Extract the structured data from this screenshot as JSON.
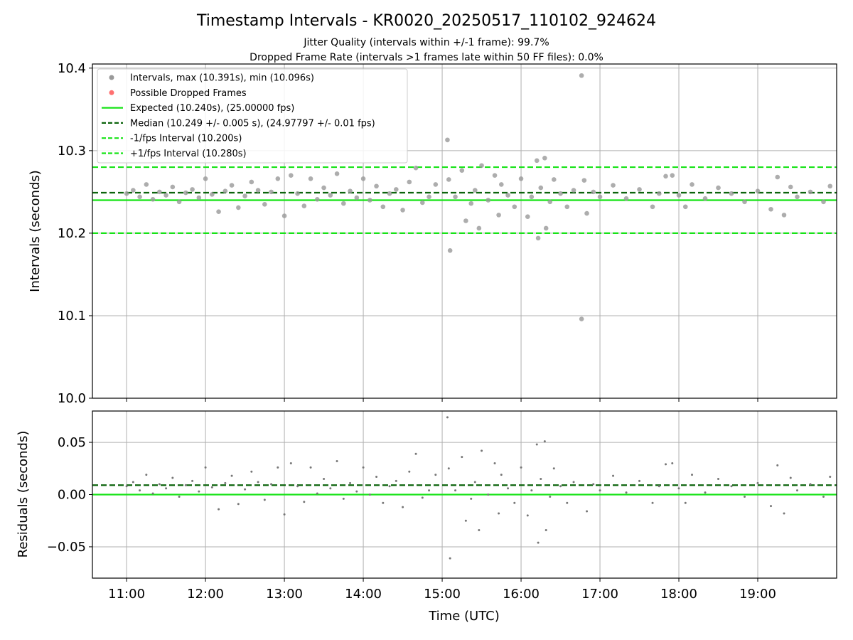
{
  "title": "Timestamp Intervals - KR0020_20250517_110102_924624",
  "subtitle1": "Jitter Quality (intervals within +/-1 frame): 99.7%",
  "subtitle2": "Dropped Frame Rate (intervals >1 frames late within 50 FF files): 0.0%",
  "chart_data": [
    {
      "type": "scatter",
      "ylabel": "Intervals (seconds)",
      "xlabel": "",
      "xlim": [
        "10:34",
        "20:00"
      ],
      "ylim": [
        10.0,
        10.405
      ],
      "x_ticks": [
        "11:00",
        "12:00",
        "13:00",
        "14:00",
        "15:00",
        "16:00",
        "17:00",
        "18:00",
        "19:00"
      ],
      "y_ticks": [
        "10.0",
        "10.1",
        "10.2",
        "10.3",
        "10.4"
      ],
      "y_tick_values": [
        10.0,
        10.1,
        10.2,
        10.3,
        10.4
      ],
      "grid": true,
      "legend_position": "top-left",
      "legend": [
        {
          "label": "Intervals, max (10.391s), min (10.096s)",
          "style": "marker",
          "color": "#999999"
        },
        {
          "label": "Possible Dropped Frames",
          "style": "marker",
          "color": "#ff7070"
        },
        {
          "label": "Expected (10.240s), (25.00000 fps)",
          "style": "solid",
          "color": "#16e316"
        },
        {
          "label": "Median (10.249 +/- 0.005 s), (24.97797 +/- 0.01 fps)",
          "style": "dashed",
          "color": "#0d640d"
        },
        {
          "label": "-1/fps Interval (10.200s)",
          "style": "dashed",
          "color": "#16e316"
        },
        {
          "label": "+1/fps Interval (10.280s)",
          "style": "dashed",
          "color": "#16e316"
        }
      ],
      "lines": [
        {
          "name": "Expected",
          "y": 10.24,
          "style": "solid",
          "color": "#16e316"
        },
        {
          "name": "Median",
          "y": 10.249,
          "style": "dashed",
          "color": "#0d640d"
        },
        {
          "name": "-1/fps Interval",
          "y": 10.2,
          "style": "dashed",
          "color": "#16e316"
        },
        {
          "name": "+1/fps Interval",
          "y": 10.28,
          "style": "dashed",
          "color": "#16e316"
        }
      ],
      "series": [
        {
          "values": [
            [
              "11:00",
              10.248
            ],
            [
              "11:05",
              10.252
            ],
            [
              "11:10",
              10.244
            ],
            [
              "11:15",
              10.259
            ],
            [
              "11:20",
              10.241
            ],
            [
              "11:25",
              10.25
            ],
            [
              "11:30",
              10.246
            ],
            [
              "11:35",
              10.256
            ],
            [
              "11:40",
              10.238
            ],
            [
              "11:45",
              10.249
            ],
            [
              "11:50",
              10.253
            ],
            [
              "11:55",
              10.243
            ],
            [
              "12:00",
              10.266
            ],
            [
              "12:05",
              10.247
            ],
            [
              "12:10",
              10.226
            ],
            [
              "12:15",
              10.251
            ],
            [
              "12:20",
              10.258
            ],
            [
              "12:25",
              10.231
            ],
            [
              "12:30",
              10.245
            ],
            [
              "12:35",
              10.262
            ],
            [
              "12:40",
              10.252
            ],
            [
              "12:45",
              10.235
            ],
            [
              "12:50",
              10.25
            ],
            [
              "12:55",
              10.266
            ],
            [
              "13:00",
              10.221
            ],
            [
              "13:05",
              10.27
            ],
            [
              "13:10",
              10.248
            ],
            [
              "13:15",
              10.233
            ],
            [
              "13:20",
              10.266
            ],
            [
              "13:25",
              10.241
            ],
            [
              "13:30",
              10.255
            ],
            [
              "13:35",
              10.246
            ],
            [
              "13:40",
              10.272
            ],
            [
              "13:45",
              10.236
            ],
            [
              "13:50",
              10.251
            ],
            [
              "13:55",
              10.243
            ],
            [
              "14:00",
              10.266
            ],
            [
              "14:05",
              10.24
            ],
            [
              "14:10",
              10.257
            ],
            [
              "14:15",
              10.232
            ],
            [
              "14:20",
              10.248
            ],
            [
              "14:25",
              10.253
            ],
            [
              "14:30",
              10.228
            ],
            [
              "14:35",
              10.262
            ],
            [
              "14:40",
              10.279
            ],
            [
              "14:45",
              10.237
            ],
            [
              "14:50",
              10.244
            ],
            [
              "14:55",
              10.259
            ],
            [
              "15:04",
              10.313
            ],
            [
              "15:05",
              10.265
            ],
            [
              "15:06",
              10.179
            ],
            [
              "15:10",
              10.244
            ],
            [
              "15:15",
              10.276
            ],
            [
              "15:18",
              10.215
            ],
            [
              "15:22",
              10.236
            ],
            [
              "15:25",
              10.252
            ],
            [
              "15:28",
              10.206
            ],
            [
              "15:30",
              10.282
            ],
            [
              "15:35",
              10.24
            ],
            [
              "15:40",
              10.27
            ],
            [
              "15:43",
              10.222
            ],
            [
              "15:45",
              10.259
            ],
            [
              "15:50",
              10.246
            ],
            [
              "15:55",
              10.232
            ],
            [
              "16:00",
              10.266
            ],
            [
              "16:05",
              10.22
            ],
            [
              "16:08",
              10.244
            ],
            [
              "16:12",
              10.288
            ],
            [
              "16:13",
              10.194
            ],
            [
              "16:15",
              10.255
            ],
            [
              "16:18",
              10.291
            ],
            [
              "16:19",
              10.206
            ],
            [
              "16:22",
              10.238
            ],
            [
              "16:25",
              10.265
            ],
            [
              "16:30",
              10.248
            ],
            [
              "16:35",
              10.232
            ],
            [
              "16:40",
              10.252
            ],
            [
              "16:46",
              10.391
            ],
            [
              "16:46",
              10.096
            ],
            [
              "16:48",
              10.264
            ],
            [
              "16:50",
              10.224
            ],
            [
              "16:55",
              10.25
            ],
            [
              "17:00",
              10.244
            ],
            [
              "17:10",
              10.258
            ],
            [
              "17:20",
              10.242
            ],
            [
              "17:30",
              10.253
            ],
            [
              "17:40",
              10.232
            ],
            [
              "17:45",
              10.248
            ],
            [
              "17:50",
              10.269
            ],
            [
              "17:55",
              10.27
            ],
            [
              "18:00",
              10.246
            ],
            [
              "18:05",
              10.232
            ],
            [
              "18:10",
              10.259
            ],
            [
              "18:20",
              10.242
            ],
            [
              "18:30",
              10.255
            ],
            [
              "18:40",
              10.248
            ],
            [
              "18:50",
              10.238
            ],
            [
              "19:00",
              10.251
            ],
            [
              "19:10",
              10.229
            ],
            [
              "19:15",
              10.268
            ],
            [
              "19:20",
              10.222
            ],
            [
              "19:25",
              10.256
            ],
            [
              "19:30",
              10.244
            ],
            [
              "19:40",
              10.25
            ],
            [
              "19:50",
              10.238
            ],
            [
              "19:55",
              10.257
            ]
          ],
          "color": "#999999"
        }
      ]
    },
    {
      "type": "scatter",
      "ylabel": "Residuals (seconds)",
      "xlabel": "Time (UTC)",
      "xlim": [
        "10:34",
        "20:00"
      ],
      "ylim": [
        -0.08,
        0.08
      ],
      "x_ticks": [
        "11:00",
        "12:00",
        "13:00",
        "14:00",
        "15:00",
        "16:00",
        "17:00",
        "18:00",
        "19:00"
      ],
      "y_ticks": [
        "−0.05",
        "0.00",
        "0.05"
      ],
      "y_tick_values": [
        -0.05,
        0.0,
        0.05
      ],
      "grid": true,
      "lines": [
        {
          "name": "Median",
          "y": 0.009,
          "style": "dashed",
          "color": "#0d640d"
        },
        {
          "name": "Expected",
          "y": 0.0,
          "style": "solid",
          "color": "#16e316"
        }
      ],
      "series": [
        {
          "values": [
            [
              "11:00",
              0.008
            ],
            [
              "11:05",
              0.012
            ],
            [
              "11:10",
              0.004
            ],
            [
              "11:15",
              0.019
            ],
            [
              "11:20",
              0.001
            ],
            [
              "11:25",
              0.01
            ],
            [
              "11:30",
              0.006
            ],
            [
              "11:35",
              0.016
            ],
            [
              "11:40",
              -0.002
            ],
            [
              "11:45",
              0.009
            ],
            [
              "11:50",
              0.013
            ],
            [
              "11:55",
              0.003
            ],
            [
              "12:00",
              0.026
            ],
            [
              "12:05",
              0.007
            ],
            [
              "12:10",
              -0.014
            ],
            [
              "12:15",
              0.011
            ],
            [
              "12:20",
              0.018
            ],
            [
              "12:25",
              -0.009
            ],
            [
              "12:30",
              0.005
            ],
            [
              "12:35",
              0.022
            ],
            [
              "12:40",
              0.012
            ],
            [
              "12:45",
              -0.005
            ],
            [
              "12:50",
              0.01
            ],
            [
              "12:55",
              0.026
            ],
            [
              "13:00",
              -0.019
            ],
            [
              "13:05",
              0.03
            ],
            [
              "13:10",
              0.008
            ],
            [
              "13:15",
              -0.007
            ],
            [
              "13:20",
              0.026
            ],
            [
              "13:25",
              0.001
            ],
            [
              "13:30",
              0.015
            ],
            [
              "13:35",
              0.006
            ],
            [
              "13:40",
              0.032
            ],
            [
              "13:45",
              -0.004
            ],
            [
              "13:50",
              0.011
            ],
            [
              "13:55",
              0.003
            ],
            [
              "14:00",
              0.026
            ],
            [
              "14:05",
              0.0
            ],
            [
              "14:10",
              0.017
            ],
            [
              "14:15",
              -0.008
            ],
            [
              "14:20",
              0.008
            ],
            [
              "14:25",
              0.013
            ],
            [
              "14:30",
              -0.012
            ],
            [
              "14:35",
              0.022
            ],
            [
              "14:40",
              0.039
            ],
            [
              "14:45",
              -0.003
            ],
            [
              "14:50",
              0.004
            ],
            [
              "14:55",
              0.019
            ],
            [
              "15:04",
              0.074
            ],
            [
              "15:05",
              0.025
            ],
            [
              "15:06",
              -0.061
            ],
            [
              "15:10",
              0.004
            ],
            [
              "15:15",
              0.036
            ],
            [
              "15:18",
              -0.025
            ],
            [
              "15:22",
              -0.004
            ],
            [
              "15:25",
              0.012
            ],
            [
              "15:28",
              -0.034
            ],
            [
              "15:30",
              0.042
            ],
            [
              "15:35",
              0.0
            ],
            [
              "15:40",
              0.03
            ],
            [
              "15:43",
              -0.018
            ],
            [
              "15:45",
              0.019
            ],
            [
              "15:50",
              0.006
            ],
            [
              "15:55",
              -0.008
            ],
            [
              "16:00",
              0.026
            ],
            [
              "16:05",
              -0.02
            ],
            [
              "16:08",
              0.004
            ],
            [
              "16:12",
              0.048
            ],
            [
              "16:13",
              -0.046
            ],
            [
              "16:15",
              0.015
            ],
            [
              "16:18",
              0.051
            ],
            [
              "16:19",
              -0.034
            ],
            [
              "16:22",
              -0.002
            ],
            [
              "16:25",
              0.025
            ],
            [
              "16:30",
              0.008
            ],
            [
              "16:35",
              -0.008
            ],
            [
              "16:40",
              0.012
            ],
            [
              "16:50",
              -0.016
            ],
            [
              "16:55",
              0.01
            ],
            [
              "17:00",
              0.004
            ],
            [
              "17:10",
              0.018
            ],
            [
              "17:20",
              0.002
            ],
            [
              "17:30",
              0.013
            ],
            [
              "17:40",
              -0.008
            ],
            [
              "17:45",
              0.008
            ],
            [
              "17:50",
              0.029
            ],
            [
              "17:55",
              0.03
            ],
            [
              "18:00",
              0.006
            ],
            [
              "18:05",
              -0.008
            ],
            [
              "18:10",
              0.019
            ],
            [
              "18:20",
              0.002
            ],
            [
              "18:30",
              0.015
            ],
            [
              "18:40",
              0.008
            ],
            [
              "18:50",
              -0.002
            ],
            [
              "19:00",
              0.011
            ],
            [
              "19:10",
              -0.011
            ],
            [
              "19:15",
              0.028
            ],
            [
              "19:20",
              -0.018
            ],
            [
              "19:25",
              0.016
            ],
            [
              "19:30",
              0.004
            ],
            [
              "19:40",
              0.01
            ],
            [
              "19:50",
              -0.002
            ],
            [
              "19:55",
              0.017
            ]
          ],
          "color": "#777777"
        }
      ]
    }
  ]
}
